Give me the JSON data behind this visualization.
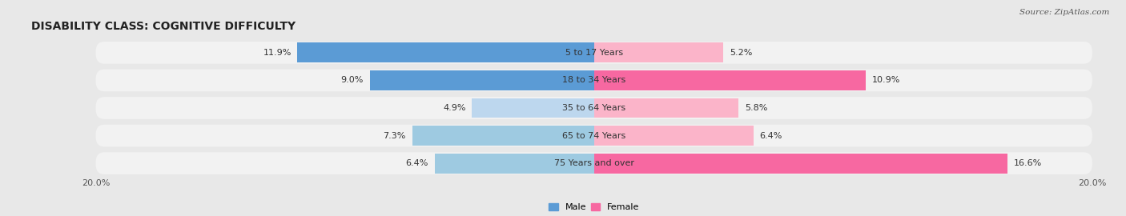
{
  "title": "DISABILITY CLASS: COGNITIVE DIFFICULTY",
  "source": "Source: ZipAtlas.com",
  "categories": [
    "5 to 17 Years",
    "18 to 34 Years",
    "35 to 64 Years",
    "65 to 74 Years",
    "75 Years and over"
  ],
  "male_values": [
    11.9,
    9.0,
    4.9,
    7.3,
    6.4
  ],
  "female_values": [
    5.2,
    10.9,
    5.8,
    6.4,
    16.6
  ],
  "male_colors": [
    "#5b9bd5",
    "#5b9bd5",
    "#bdd7ee",
    "#9ecae1",
    "#9ecae1"
  ],
  "female_colors": [
    "#fbb4c9",
    "#f768a1",
    "#fbb4c9",
    "#fbb4c9",
    "#f768a1"
  ],
  "max_value": 20.0,
  "bg_color": "#e8e8e8",
  "row_bg_color": "#f2f2f2",
  "title_fontsize": 10,
  "label_fontsize": 8,
  "value_fontsize": 8,
  "tick_fontsize": 8,
  "legend_fontsize": 8
}
